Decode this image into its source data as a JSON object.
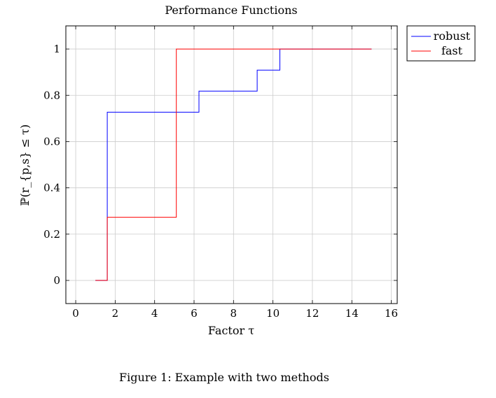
{
  "chart_data": {
    "type": "line",
    "title": "Performance Functions",
    "xlabel": "Factor τ",
    "ylabel": "ℙ(r_{p,s} ≤ τ)",
    "xlim": [
      -0.5,
      16.3
    ],
    "ylim": [
      -0.1,
      1.1
    ],
    "xticks": [
      0,
      2,
      4,
      6,
      8,
      10,
      12,
      14,
      16
    ],
    "yticks": [
      0,
      0.2,
      0.4,
      0.6,
      0.8,
      1
    ],
    "grid": true,
    "step": true,
    "legend_position": "outside-top-right",
    "series": [
      {
        "name": "robust",
        "color": "#0000ff",
        "x": [
          1,
          1.6,
          1.6,
          6.25,
          6.25,
          9.2,
          9.2,
          10.35,
          10.35,
          15
        ],
        "y": [
          0,
          0,
          0.727,
          0.727,
          0.818,
          0.818,
          0.909,
          0.909,
          1,
          1
        ]
      },
      {
        "name": "fast",
        "color": "#ff0000",
        "x": [
          1,
          1.6,
          1.6,
          5.1,
          5.1,
          15
        ],
        "y": [
          0,
          0,
          0.273,
          0.273,
          1,
          1
        ]
      }
    ]
  },
  "caption": "Figure 1: Example with two methods"
}
